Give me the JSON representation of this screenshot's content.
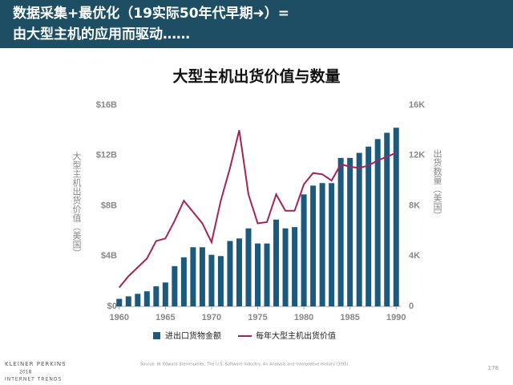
{
  "header": {
    "line1": "数据采集+最优化（19实际50年代早期➜）=",
    "line2": "由大型主机的应用而驱动……"
  },
  "footer": {
    "source": "Source: W. Edward Steinmueller, The U.S. Software Industry: An Analysis and Interpretive History (3/95).",
    "page": "178",
    "logo1": "KLEINER PERKINS",
    "logo2": "2018",
    "logo3": "INTERNET TRENDS"
  },
  "chart_data": {
    "type": "bar",
    "title": "大型主机出货价值与数量",
    "y_label": "大型主机出货价值（美国）",
    "y2_label": "出货数量（美国）",
    "x": [
      1960,
      1961,
      1962,
      1963,
      1964,
      1965,
      1966,
      1967,
      1968,
      1969,
      1970,
      1971,
      1972,
      1973,
      1974,
      1975,
      1976,
      1977,
      1978,
      1979,
      1980,
      1981,
      1982,
      1983,
      1984,
      1985,
      1986,
      1987,
      1988,
      1989,
      1990
    ],
    "series": [
      {
        "name": "进出口货物金额",
        "type": "bar",
        "color": "#1b5a7c",
        "values": [
          0.6,
          0.8,
          1.0,
          1.2,
          1.6,
          1.9,
          3.2,
          3.9,
          4.7,
          4.7,
          4.1,
          4.0,
          5.2,
          5.4,
          6.2,
          5.0,
          5.0,
          6.9,
          6.2,
          6.3,
          8.9,
          9.6,
          9.8,
          9.8,
          11.8,
          11.8,
          12.2,
          12.7,
          13.3,
          13.8,
          14.2
        ]
      },
      {
        "name": "每年大型主机出货价值",
        "type": "line",
        "axis": "y2",
        "color": "#a3245a",
        "values": [
          1.5,
          2.4,
          3.1,
          3.8,
          5.2,
          5.4,
          6.8,
          8.4,
          7.5,
          6.6,
          5.1,
          8.4,
          11.0,
          14.0,
          8.9,
          6.6,
          6.7,
          8.9,
          7.6,
          7.6,
          9.7,
          10.6,
          10.5,
          10.0,
          11.3,
          11.1,
          11.0,
          11.2,
          11.6,
          11.9,
          12.2
        ]
      }
    ],
    "xlim": [
      1959.5,
      1990.5
    ],
    "xticks": [
      1960,
      1965,
      1970,
      1975,
      1980,
      1985,
      1990
    ],
    "ylim": [
      0,
      16
    ],
    "yticks": [
      {
        "value": 0,
        "label": "$0"
      },
      {
        "value": 4,
        "label": "$4B"
      },
      {
        "value": 8,
        "label": "$8B"
      },
      {
        "value": 12,
        "label": "$12B"
      },
      {
        "value": 16,
        "label": "$16B"
      }
    ],
    "y2lim": [
      0,
      16
    ],
    "y2ticks": [
      0,
      {
        "value": 4,
        "label": "4K"
      },
      {
        "value": 8,
        "label": "8K"
      },
      {
        "value": 12,
        "label": "12K"
      },
      {
        "value": 16,
        "label": "16K"
      }
    ],
    "grid": false
  }
}
